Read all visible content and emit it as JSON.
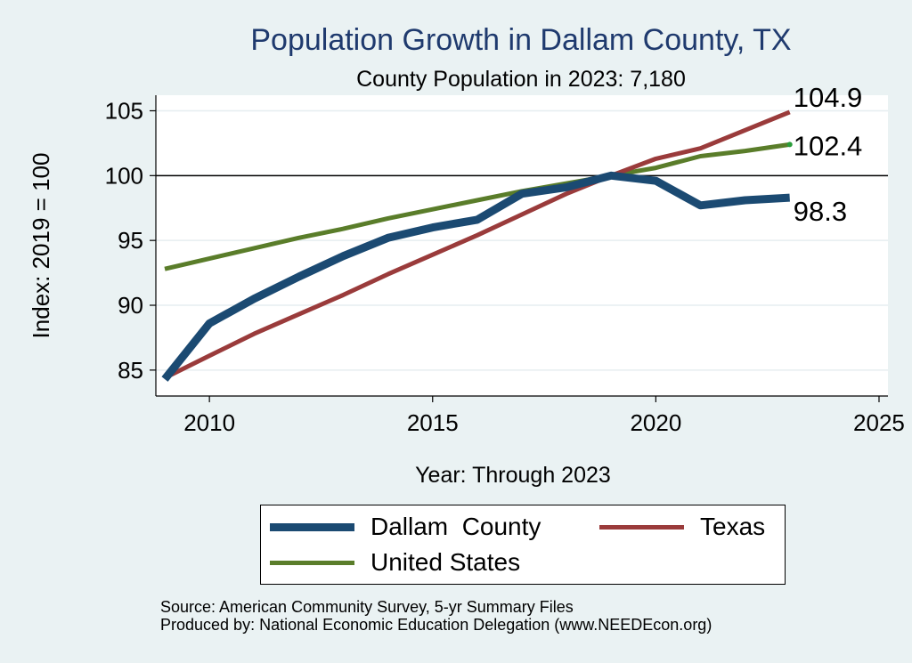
{
  "chart_data": {
    "type": "line",
    "title": "Population Growth in Dallam County, TX",
    "subtitle": "County Population in 2023: 7,180",
    "xlabel": "Year: Through 2023",
    "ylabel": "Index: 2019 = 100",
    "xlim": [
      2008.8,
      2025.2
    ],
    "ylim": [
      83,
      106.2
    ],
    "xticks": [
      2010,
      2015,
      2020,
      2025
    ],
    "yticks": [
      85,
      90,
      95,
      100,
      105
    ],
    "reference_line": 100,
    "x": [
      2009,
      2010,
      2011,
      2012,
      2013,
      2014,
      2015,
      2016,
      2017,
      2018,
      2019,
      2020,
      2021,
      2022,
      2023
    ],
    "series": [
      {
        "name": "Dallam  County",
        "color": "#1b4a72",
        "values": [
          84.3,
          88.6,
          90.5,
          92.2,
          93.8,
          95.2,
          96.0,
          96.6,
          98.6,
          99.1,
          100.0,
          99.6,
          97.7,
          98.1,
          98.3
        ],
        "end_label": "98.3"
      },
      {
        "name": "Texas",
        "color": "#9a3b3b",
        "values": [
          84.4,
          86.1,
          87.8,
          89.3,
          90.8,
          92.4,
          93.9,
          95.4,
          97.0,
          98.6,
          100.0,
          101.3,
          102.1,
          103.5,
          104.9
        ],
        "end_label": "104.9"
      },
      {
        "name": "United States",
        "color": "#5a7d2a",
        "values": [
          92.8,
          93.6,
          94.4,
          95.2,
          95.9,
          96.7,
          97.4,
          98.1,
          98.8,
          99.4,
          100.0,
          100.6,
          101.5,
          101.9,
          102.4
        ],
        "end_label": "102.4"
      }
    ],
    "legend": [
      {
        "label": "Dallam  County",
        "color": "#1b4a72"
      },
      {
        "label": "Texas",
        "color": "#9a3b3b"
      },
      {
        "label": "United States",
        "color": "#5a7d2a"
      }
    ],
    "source": "Source: American Community Survey, 5-yr Summary Files",
    "producer": "Produced by: National Economic Education Delegation (www.NEEDEcon.org)"
  }
}
